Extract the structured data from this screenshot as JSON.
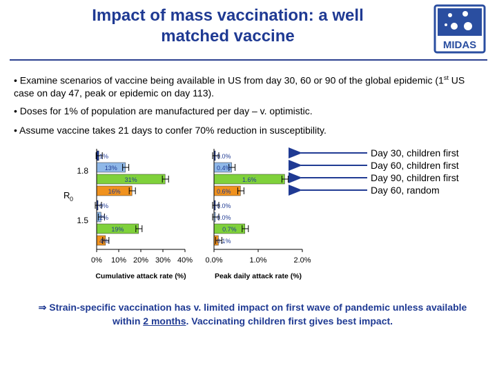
{
  "slide": {
    "title_line1": "Impact of mass vaccination: a well",
    "title_line2": "matched vaccine",
    "logo_text": "MIDAS",
    "bullets": [
      {
        "text_a": "• Examine scenarios of vaccine being available in US from day 30, 60 or 90 of the global epidemic (1",
        "sup": "st",
        "text_b": " US case on day 47, peak or epidemic on day 113)."
      },
      {
        "text": "• Doses for 1% of population are manufactured per day – v. optimistic."
      },
      {
        "text": "• Assume vaccine takes 21 days to confer 70% reduction in susceptibility."
      }
    ],
    "conclusion": {
      "arrow": "⇒",
      "part1": " Strain-specific vaccination has v. limited impact on first wave of pandemic unless available within ",
      "underlined": "2 months",
      "part2": ". Vaccinating children first gives best impact."
    }
  },
  "colors": {
    "title": "#1f3a93",
    "day30": "#1f3a93",
    "day60": "#8fb8e8",
    "day90": "#7fd13b",
    "random": "#f0921e",
    "arrow": "#1f3a93"
  },
  "chart_data": [
    {
      "type": "bar",
      "orientation": "horizontal",
      "xlabel": "Cumulative attack rate (%)",
      "ylabel": "R",
      "ylabel_sub": "0",
      "xlim": [
        0,
        40
      ],
      "xticks": [
        "0%",
        "10%",
        "20%",
        "30%",
        "40%"
      ],
      "groups": [
        "1.8",
        "1.5"
      ],
      "series": [
        {
          "name": "Day 30, children first",
          "values": [
            1,
            0
          ],
          "labels": [
            "1%",
            "0%"
          ]
        },
        {
          "name": "Day 60, children first",
          "values": [
            13,
            2
          ],
          "labels": [
            "13%",
            "2%"
          ]
        },
        {
          "name": "Day 90, children first",
          "values": [
            31,
            19
          ],
          "labels": [
            "31%",
            "19%"
          ]
        },
        {
          "name": "Day 60, random",
          "values": [
            16,
            4
          ],
          "labels": [
            "16%",
            "4%"
          ]
        }
      ]
    },
    {
      "type": "bar",
      "orientation": "horizontal",
      "xlabel": "Peak daily attack rate (%)",
      "xlim": [
        0,
        2
      ],
      "xticks": [
        "0.0%",
        "1.0%",
        "2.0%"
      ],
      "groups": [
        "1.8",
        "1.5"
      ],
      "series": [
        {
          "name": "Day 30, children first",
          "values": [
            0.0,
            0.0
          ],
          "labels": [
            "0.0%",
            "0.0%"
          ]
        },
        {
          "name": "Day 60, children first",
          "values": [
            0.4,
            0.0
          ],
          "labels": [
            "0.4%",
            "0.0%"
          ]
        },
        {
          "name": "Day 90, children first",
          "values": [
            1.6,
            0.7
          ],
          "labels": [
            "1.6%",
            "0.7%"
          ]
        },
        {
          "name": "Day 60, random",
          "values": [
            0.6,
            0.1
          ],
          "labels": [
            "0.6%",
            "0.1%"
          ]
        }
      ]
    }
  ]
}
